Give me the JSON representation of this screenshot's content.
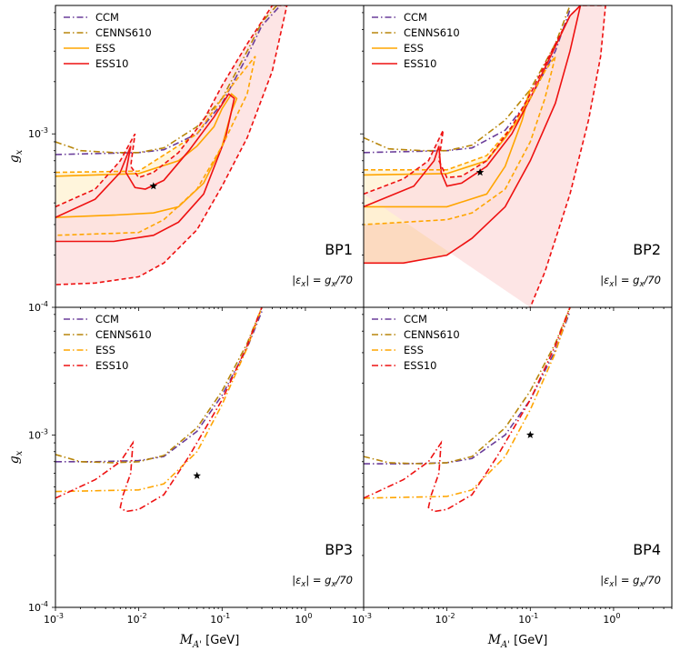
{
  "xlabel": "M_{A'} [GeV]",
  "xlabel_main": "M",
  "xlabel_sub": "A'",
  "xlabel_unit": "[GeV]",
  "ylabel": "g_x",
  "ylabel_main": "g",
  "ylabel_sub": "x",
  "x_ticks": [
    "10^-3",
    "10^-2",
    "10^-1",
    "10^0"
  ],
  "y_ticks": [
    "10^-4",
    "10^-3"
  ],
  "epsilon_main": "|ε",
  "epsilon_sub": "x",
  "epsilon_rest": "| = g",
  "epsilon_sub2": "x",
  "epsilon_tail": "/70",
  "colors": {
    "CCM": "#6a3d9a",
    "CENNS610": "#b8860b",
    "ESS": "#ffa500",
    "ESS10": "#ee1111",
    "fill_ESS": "#fff3d6",
    "fill_ESS_band": "#fbd3b5",
    "fill_ESS10": "#fde0e0"
  },
  "chart_data": [
    {
      "type": "line",
      "panel": "BP1",
      "xscale": "log",
      "yscale": "log",
      "xlim": [
        0.001,
        5
      ],
      "ylim": [
        0.0001,
        0.0055
      ],
      "legend": [
        "CCM",
        "CENNS610",
        "ESS",
        "ESS10"
      ],
      "legend_position": "top-left",
      "benchmark_point": [
        0.015,
        0.0005
      ],
      "series": [
        {
          "name": "CCM",
          "style": "dashdot",
          "x": [
            0.001,
            0.003,
            0.01,
            0.02,
            0.05,
            0.1,
            0.2,
            0.3,
            0.5
          ],
          "y": [
            0.00076,
            0.00077,
            0.00078,
            0.00081,
            0.001,
            0.0015,
            0.0028,
            0.0042,
            0.0055
          ]
        },
        {
          "name": "CENNS610",
          "style": "dashdot",
          "x": [
            0.001,
            0.002,
            0.005,
            0.01,
            0.02,
            0.05,
            0.1,
            0.2,
            0.3,
            0.5
          ],
          "y": [
            0.0009,
            0.0008,
            0.00078,
            0.00078,
            0.00083,
            0.0011,
            0.0016,
            0.003,
            0.0044,
            0.0058
          ]
        },
        {
          "name": "ESS",
          "style": "solid",
          "x": [
            0.001,
            0.01,
            0.03,
            0.05,
            0.08,
            0.1,
            0.13,
            0.15,
            0.13,
            0.1,
            0.06,
            0.03,
            0.015,
            0.005,
            0.001
          ],
          "y": [
            0.00057,
            0.00059,
            0.0007,
            0.00085,
            0.0011,
            0.0014,
            0.0017,
            0.0016,
            0.00135,
            0.00085,
            0.00052,
            0.00038,
            0.00035,
            0.00034,
            0.00033
          ]
        },
        {
          "name": "ESS10",
          "style": "solid",
          "x": [
            0.001,
            0.003,
            0.006,
            0.008,
            0.007,
            0.009,
            0.012,
            0.02,
            0.04,
            0.08,
            0.12,
            0.14,
            0.11,
            0.06,
            0.03,
            0.015,
            0.005,
            0.001
          ],
          "y": [
            0.00033,
            0.00042,
            0.0006,
            0.00085,
            0.0006,
            0.00049,
            0.00048,
            0.00054,
            0.0008,
            0.00125,
            0.0017,
            0.0016,
            0.00095,
            0.00045,
            0.00031,
            0.00026,
            0.00024,
            0.00024
          ]
        },
        {
          "name": "ESS dashed",
          "style": "dashed",
          "x": [
            0.001,
            0.01,
            0.05,
            0.1,
            0.18,
            0.25,
            0.2,
            0.1,
            0.05,
            0.02,
            0.01,
            0.001
          ],
          "y": [
            0.0006,
            0.00061,
            0.001,
            0.0016,
            0.0023,
            0.0028,
            0.0017,
            0.00085,
            0.00048,
            0.00032,
            0.00027,
            0.00026
          ]
        },
        {
          "name": "ESS10 dashed",
          "style": "dashed",
          "x": [
            0.001,
            0.003,
            0.006,
            0.009,
            0.008,
            0.01,
            0.015,
            0.03,
            0.06,
            0.1,
            0.2,
            0.4,
            0.6,
            0.4,
            0.2,
            0.1,
            0.05,
            0.02,
            0.01,
            0.003,
            0.001
          ],
          "y": [
            0.00038,
            0.00048,
            0.0007,
            0.001,
            0.00065,
            0.00056,
            0.0006,
            0.00078,
            0.0012,
            0.0019,
            0.0033,
            0.0055,
            0.0055,
            0.0023,
            0.00095,
            0.0005,
            0.00028,
            0.00018,
            0.00015,
            0.000138,
            0.000135
          ]
        }
      ],
      "label": "BP1"
    },
    {
      "type": "line",
      "panel": "BP2",
      "xscale": "log",
      "yscale": "log",
      "xlim": [
        0.001,
        5
      ],
      "ylim": [
        0.0001,
        0.0055
      ],
      "legend": [
        "CCM",
        "CENNS610",
        "ESS",
        "ESS10"
      ],
      "legend_position": "top-left",
      "benchmark_point": [
        0.025,
        0.0006
      ],
      "series": [
        {
          "name": "CCM",
          "style": "dashdot",
          "x": [
            0.001,
            0.003,
            0.01,
            0.02,
            0.05,
            0.1,
            0.2,
            0.3
          ],
          "y": [
            0.00078,
            0.00079,
            0.0008,
            0.00083,
            0.00105,
            0.0016,
            0.003,
            0.0052
          ]
        },
        {
          "name": "CENNS610",
          "style": "dashdot",
          "x": [
            0.001,
            0.002,
            0.005,
            0.01,
            0.02,
            0.05,
            0.1,
            0.2,
            0.3
          ],
          "y": [
            0.00095,
            0.00082,
            0.0008,
            0.0008,
            0.00086,
            0.0012,
            0.0018,
            0.0033,
            0.0055
          ]
        },
        {
          "name": "ESS",
          "style": "solid",
          "x": [
            0.001,
            0.01,
            0.03,
            0.05,
            0.08,
            0.1,
            0.08,
            0.05,
            0.03,
            0.01,
            0.001
          ],
          "y": [
            0.00058,
            0.00059,
            0.0007,
            0.00095,
            0.0013,
            0.0018,
            0.0012,
            0.00065,
            0.00045,
            0.00038,
            0.00038
          ]
        },
        {
          "name": "ESS10",
          "style": "solid",
          "x": [
            0.001,
            0.004,
            0.007,
            0.008,
            0.0085,
            0.01,
            0.015,
            0.03,
            0.06,
            0.1,
            0.2,
            0.3,
            0.4,
            0.3,
            0.2,
            0.1,
            0.05,
            0.02,
            0.01,
            0.003,
            0.001
          ],
          "y": [
            0.00038,
            0.0005,
            0.0007,
            0.00085,
            0.0006,
            0.0005,
            0.00052,
            0.00065,
            0.001,
            0.0016,
            0.0032,
            0.0048,
            0.0055,
            0.003,
            0.0015,
            0.0007,
            0.00038,
            0.00025,
            0.0002,
            0.00018,
            0.00018
          ]
        },
        {
          "name": "ESS dashed",
          "style": "dashed",
          "x": [
            0.001,
            0.01,
            0.03,
            0.06,
            0.1,
            0.15,
            0.2,
            0.15,
            0.1,
            0.05,
            0.02,
            0.01,
            0.001
          ],
          "y": [
            0.00062,
            0.00062,
            0.00075,
            0.0011,
            0.0016,
            0.0023,
            0.0028,
            0.0016,
            0.0009,
            0.00048,
            0.00035,
            0.00032,
            0.0003
          ]
        },
        {
          "name": "ESS10 dashed",
          "style": "dashed",
          "x": [
            0.001,
            0.003,
            0.006,
            0.009,
            0.008,
            0.01,
            0.015,
            0.03,
            0.06,
            0.1,
            0.2,
            0.3,
            0.4,
            0.6,
            0.8,
            0.7,
            0.5,
            0.3,
            0.15,
            0.1
          ],
          "y": [
            0.00045,
            0.00055,
            0.0007,
            0.00105,
            0.0007,
            0.00056,
            0.00057,
            0.0007,
            0.0011,
            0.0017,
            0.0033,
            0.0048,
            0.0055,
            0.0055,
            0.0055,
            0.0028,
            0.0012,
            0.00045,
            0.00016,
            0.0001
          ]
        }
      ],
      "label": "BP2"
    },
    {
      "type": "line",
      "panel": "BP3",
      "xscale": "log",
      "yscale": "log",
      "xlim": [
        0.001,
        5
      ],
      "ylim": [
        0.0001,
        0.0055
      ],
      "legend": [
        "CCM",
        "CENNS610",
        "ESS",
        "ESS10"
      ],
      "legend_position": "top-left",
      "benchmark_point": [
        0.05,
        0.00058
      ],
      "series": [
        {
          "name": "CCM",
          "style": "dashdot",
          "x": [
            0.001,
            0.003,
            0.01,
            0.02,
            0.05,
            0.1,
            0.2,
            0.3
          ],
          "y": [
            0.0007,
            0.0007,
            0.00071,
            0.00075,
            0.00105,
            0.0017,
            0.0032,
            0.0052
          ]
        },
        {
          "name": "CENNS610",
          "style": "dashdot",
          "x": [
            0.001,
            0.002,
            0.005,
            0.01,
            0.02,
            0.05,
            0.1,
            0.2,
            0.3
          ],
          "y": [
            0.00077,
            0.0007,
            0.00069,
            0.0007,
            0.00076,
            0.0011,
            0.0018,
            0.0034,
            0.0055
          ]
        },
        {
          "name": "ESS",
          "style": "dashdot",
          "x": [
            0.001,
            0.01,
            0.02,
            0.05,
            0.1,
            0.2,
            0.3
          ],
          "y": [
            0.00047,
            0.00048,
            0.00052,
            0.0008,
            0.0015,
            0.0032,
            0.0055
          ]
        },
        {
          "name": "ESS10",
          "style": "dashdot",
          "x": [
            0.001,
            0.003,
            0.006,
            0.0085,
            0.008,
            0.0065,
            0.006,
            0.007,
            0.01,
            0.02,
            0.04,
            0.1,
            0.2,
            0.3
          ],
          "y": [
            0.00043,
            0.00055,
            0.0007,
            0.0009,
            0.0006,
            0.00045,
            0.00038,
            0.00036,
            0.00037,
            0.00045,
            0.00075,
            0.0016,
            0.0033,
            0.0055
          ]
        }
      ],
      "label": "BP3"
    },
    {
      "type": "line",
      "panel": "BP4",
      "xscale": "log",
      "yscale": "log",
      "xlim": [
        0.001,
        5
      ],
      "ylim": [
        0.0001,
        0.0055
      ],
      "legend": [
        "CCM",
        "CENNS610",
        "ESS",
        "ESS10"
      ],
      "legend_position": "top-left",
      "benchmark_point": [
        0.1,
        0.001
      ],
      "series": [
        {
          "name": "CCM",
          "style": "dashdot",
          "x": [
            0.001,
            0.003,
            0.01,
            0.02,
            0.05,
            0.1,
            0.2,
            0.3
          ],
          "y": [
            0.00068,
            0.00068,
            0.00069,
            0.00073,
            0.001,
            0.0016,
            0.0031,
            0.0052
          ]
        },
        {
          "name": "CENNS610",
          "style": "dashdot",
          "x": [
            0.001,
            0.002,
            0.005,
            0.01,
            0.02,
            0.05,
            0.1,
            0.2,
            0.3
          ],
          "y": [
            0.00075,
            0.00069,
            0.00068,
            0.00069,
            0.00075,
            0.0011,
            0.0018,
            0.0034,
            0.0055
          ]
        },
        {
          "name": "ESS",
          "style": "dashdot",
          "x": [
            0.001,
            0.01,
            0.02,
            0.05,
            0.1,
            0.2,
            0.3
          ],
          "y": [
            0.00043,
            0.00044,
            0.00048,
            0.00075,
            0.0014,
            0.003,
            0.0055
          ]
        },
        {
          "name": "ESS10",
          "style": "dashdot",
          "x": [
            0.001,
            0.003,
            0.006,
            0.0085,
            0.008,
            0.0065,
            0.006,
            0.007,
            0.01,
            0.02,
            0.04,
            0.1,
            0.2,
            0.3
          ],
          "y": [
            0.00043,
            0.00055,
            0.0007,
            0.0009,
            0.0006,
            0.00045,
            0.00038,
            0.00036,
            0.00037,
            0.00045,
            0.00075,
            0.0016,
            0.0033,
            0.0055
          ]
        }
      ],
      "label": "BP4"
    }
  ]
}
